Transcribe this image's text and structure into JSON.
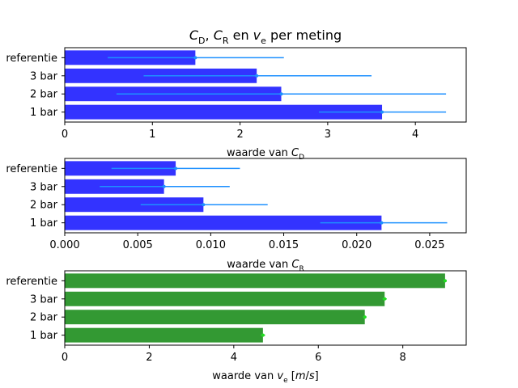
{
  "chart_data": [
    {
      "type": "bar",
      "orientation": "horizontal",
      "title_parts": [
        {
          "t": "C",
          "style": "italic"
        },
        {
          "t": "D",
          "style": "sub"
        },
        {
          "t": ", ",
          "style": "normal"
        },
        {
          "t": "C",
          "style": "italic"
        },
        {
          "t": "R",
          "style": "sub"
        },
        {
          "t": " en ",
          "style": "normal"
        },
        {
          "t": "v",
          "style": "italic"
        },
        {
          "t": "e",
          "style": "sub"
        },
        {
          "t": " per meting",
          "style": "normal"
        }
      ],
      "xlabel_parts": [
        {
          "t": "waarde van ",
          "style": "normal"
        },
        {
          "t": "C",
          "style": "italic"
        },
        {
          "t": "D",
          "style": "sub"
        }
      ],
      "categories": [
        "1 bar",
        "2 bar",
        "3 bar",
        "referentie"
      ],
      "values": [
        3.62,
        2.47,
        2.19,
        1.49
      ],
      "err_low": [
        2.9,
        0.59,
        0.9,
        0.49
      ],
      "err_high": [
        4.35,
        4.35,
        3.5,
        2.5
      ],
      "xlim": [
        0,
        4.58
      ],
      "xticks": [
        0,
        1,
        2,
        3,
        4
      ],
      "xtick_labels": [
        "0",
        "1",
        "2",
        "3",
        "4"
      ],
      "bar_color": "#3333ff",
      "err_color": "#1e90ff"
    },
    {
      "type": "bar",
      "orientation": "horizontal",
      "xlabel_parts": [
        {
          "t": "waarde van ",
          "style": "normal"
        },
        {
          "t": "C",
          "style": "italic"
        },
        {
          "t": "R",
          "style": "sub"
        }
      ],
      "categories": [
        "1 bar",
        "2 bar",
        "3 bar",
        "referentie"
      ],
      "values": [
        0.0217,
        0.0095,
        0.0068,
        0.0076
      ],
      "err_low": [
        0.0175,
        0.0052,
        0.0024,
        0.0032
      ],
      "err_high": [
        0.0262,
        0.0139,
        0.0113,
        0.012
      ],
      "xlim": [
        0,
        0.0275
      ],
      "xticks": [
        0,
        0.005,
        0.01,
        0.015,
        0.02,
        0.025
      ],
      "xtick_labels": [
        "0.000",
        "0.005",
        "0.010",
        "0.015",
        "0.020",
        "0.025"
      ],
      "bar_color": "#3333ff",
      "err_color": "#1e90ff"
    },
    {
      "type": "bar",
      "orientation": "horizontal",
      "xlabel_parts": [
        {
          "t": "waarde van ",
          "style": "normal"
        },
        {
          "t": "v",
          "style": "italic"
        },
        {
          "t": "e",
          "style": "sub"
        },
        {
          "t": " [",
          "style": "normal"
        },
        {
          "t": "m",
          "style": "italic"
        },
        {
          "t": "/",
          "style": "normal"
        },
        {
          "t": "s",
          "style": "italic"
        },
        {
          "t": "]",
          "style": "normal"
        }
      ],
      "categories": [
        "1 bar",
        "2 bar",
        "3 bar",
        "referentie"
      ],
      "values": [
        4.69,
        7.1,
        7.57,
        9.0
      ],
      "err_low": [
        4.64,
        7.06,
        7.52,
        8.96
      ],
      "err_high": [
        4.74,
        7.14,
        7.62,
        9.04
      ],
      "xlim": [
        0,
        9.5
      ],
      "xticks": [
        0,
        2,
        4,
        6,
        8
      ],
      "xtick_labels": [
        "0",
        "2",
        "4",
        "6",
        "8"
      ],
      "bar_color": "#339933",
      "err_color": "#22dd22"
    }
  ]
}
